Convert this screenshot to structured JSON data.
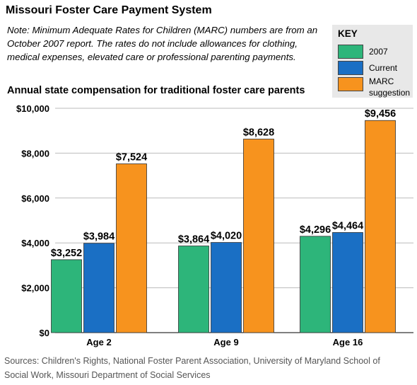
{
  "title": "Missouri Foster Care Payment System",
  "note": "Note: Minimum Adequate Rates for Children (MARC) numbers are from an October 2007 report. The rates do not include allowances for clothing, medical expenses, elevated care or professional parenting payments.",
  "key": {
    "title": "KEY",
    "items": [
      {
        "label": "2007",
        "color": "#2db57a"
      },
      {
        "label": "Current",
        "color": "#1a6fc4"
      },
      {
        "label": "MARC\nsuggestion",
        "color": "#f7931e"
      }
    ]
  },
  "source": "Sources: Children's Rights, National Foster Parent Association, University of Maryland School of Social Work, Missouri Department of Social Services",
  "chart_data": {
    "type": "bar",
    "title": "Annual state compensation for traditional foster care parents",
    "categories": [
      "Age 2",
      "Age 9",
      "Age 16"
    ],
    "series": [
      {
        "name": "2007",
        "color": "#2db57a",
        "values": [
          3252,
          3864,
          4296
        ],
        "labels": [
          "$3,252",
          "$3,864",
          "$4,296"
        ]
      },
      {
        "name": "Current",
        "color": "#1a6fc4",
        "values": [
          3984,
          4020,
          4464
        ],
        "labels": [
          "$3,984",
          "$4,020",
          "$4,464"
        ]
      },
      {
        "name": "MARC suggestion",
        "color": "#f7931e",
        "values": [
          7524,
          8628,
          9456
        ],
        "labels": [
          "$7,524",
          "$8,628",
          "$9,456"
        ]
      }
    ],
    "ylim": [
      0,
      10000
    ],
    "yticks": [
      0,
      2000,
      4000,
      6000,
      8000,
      10000
    ],
    "ytick_labels": [
      "$0",
      "$2,000",
      "$4,000",
      "$6,000",
      "$8,000",
      "$10,000"
    ],
    "grid": true,
    "legend": "top-right"
  }
}
